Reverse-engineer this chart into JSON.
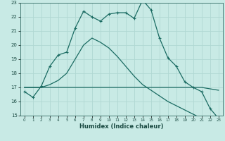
{
  "xlabel": "Humidex (Indice chaleur)",
  "x_values": [
    0,
    1,
    2,
    3,
    4,
    5,
    6,
    7,
    8,
    9,
    10,
    11,
    12,
    13,
    14,
    15,
    16,
    17,
    18,
    19,
    20,
    21,
    22,
    23
  ],
  "line1": [
    16.7,
    16.3,
    17.1,
    18.5,
    19.3,
    19.5,
    21.2,
    22.4,
    22.0,
    21.7,
    22.2,
    22.3,
    22.3,
    21.9,
    23.2,
    22.5,
    20.5,
    19.1,
    18.5,
    17.4,
    17.0,
    16.7,
    15.5,
    14.8
  ],
  "line2": [
    17.0,
    17.0,
    17.0,
    17.0,
    17.0,
    17.0,
    17.0,
    17.0,
    17.0,
    17.0,
    17.0,
    17.0,
    17.0,
    17.0,
    17.0,
    17.0,
    17.0,
    17.0,
    17.0,
    17.0,
    17.0,
    17.0,
    16.9,
    16.8
  ],
  "line3": [
    17.0,
    17.0,
    17.0,
    17.2,
    17.5,
    18.0,
    19.0,
    20.0,
    20.5,
    20.2,
    19.8,
    19.2,
    18.5,
    17.8,
    17.2,
    16.8,
    16.4,
    16.0,
    15.7,
    15.4,
    15.1,
    14.8,
    14.5,
    14.3
  ],
  "bg_color": "#c8eae5",
  "line_color": "#1a6b62",
  "grid_color": "#b0d8d2",
  "ylim": [
    15,
    23
  ],
  "xlim": [
    -0.5,
    23.5
  ],
  "yticks": [
    15,
    16,
    17,
    18,
    19,
    20,
    21,
    22,
    23
  ],
  "xticks": [
    0,
    1,
    2,
    3,
    4,
    5,
    6,
    7,
    8,
    9,
    10,
    11,
    12,
    13,
    14,
    15,
    16,
    17,
    18,
    19,
    20,
    21,
    22,
    23
  ]
}
